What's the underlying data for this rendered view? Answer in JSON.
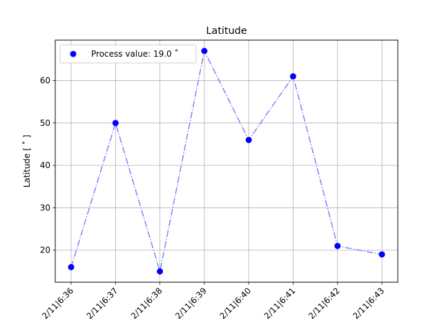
{
  "chart_data": {
    "type": "line",
    "title": "Latitude",
    "xlabel": "",
    "ylabel": "Latitude  [$^\\circ$]",
    "ylabel_display": "Latitude  [ ˚ ]",
    "categories": [
      "2/11|6:36",
      "2/11|6:37",
      "2/11|6:38",
      "2/11|6:39",
      "2/11|6:40",
      "2/11|6:41",
      "2/11|6:42",
      "2/11|6:43"
    ],
    "series": [
      {
        "name": "Process value: 19.0 ˚",
        "values": [
          16,
          50,
          15,
          67,
          46,
          61,
          21,
          19
        ],
        "marker_color": "#0000ff",
        "line_color": "#8080ff",
        "line_style": "dash-dot"
      }
    ],
    "ylim": [
      12.45,
      69.55
    ],
    "yticks": [
      20,
      30,
      40,
      50,
      60
    ],
    "grid": true,
    "legend_position": "top-left"
  }
}
